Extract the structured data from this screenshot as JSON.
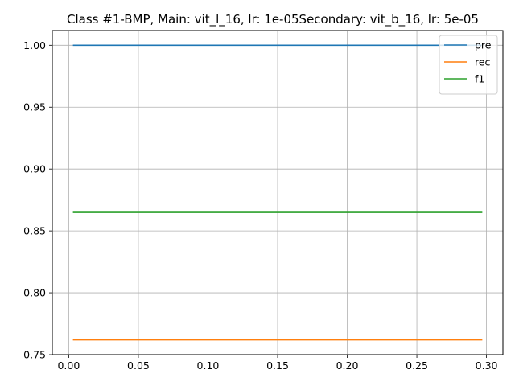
{
  "chart_data": {
    "type": "line",
    "title": "Class #1-BMP, Main: vit_l_16, lr: 1e-05Secondary: vit_b_16, lr: 5e-05",
    "xlabel": "",
    "ylabel": "",
    "xlim": [
      -0.0118,
      0.3118
    ],
    "ylim": [
      0.75,
      1.0119
    ],
    "xticks": [
      0.0,
      0.05,
      0.1,
      0.15,
      0.2,
      0.25,
      0.3
    ],
    "xtick_labels": [
      "0.00",
      "0.05",
      "0.10",
      "0.15",
      "0.20",
      "0.25",
      "0.30"
    ],
    "yticks": [
      0.75,
      0.8,
      0.85,
      0.9,
      0.95,
      1.0
    ],
    "ytick_labels": [
      "0.75",
      "0.80",
      "0.85",
      "0.90",
      "0.95",
      "1.00"
    ],
    "grid": true,
    "legend": "upper right",
    "series": [
      {
        "name": "pre",
        "color": "#1f77b4",
        "x": [
          0.003,
          0.297
        ],
        "y": [
          1.0,
          1.0
        ]
      },
      {
        "name": "rec",
        "color": "#ff7f0e",
        "x": [
          0.003,
          0.297
        ],
        "y": [
          0.762,
          0.762
        ]
      },
      {
        "name": "f1",
        "color": "#2ca02c",
        "x": [
          0.003,
          0.297
        ],
        "y": [
          0.865,
          0.865
        ]
      }
    ]
  }
}
